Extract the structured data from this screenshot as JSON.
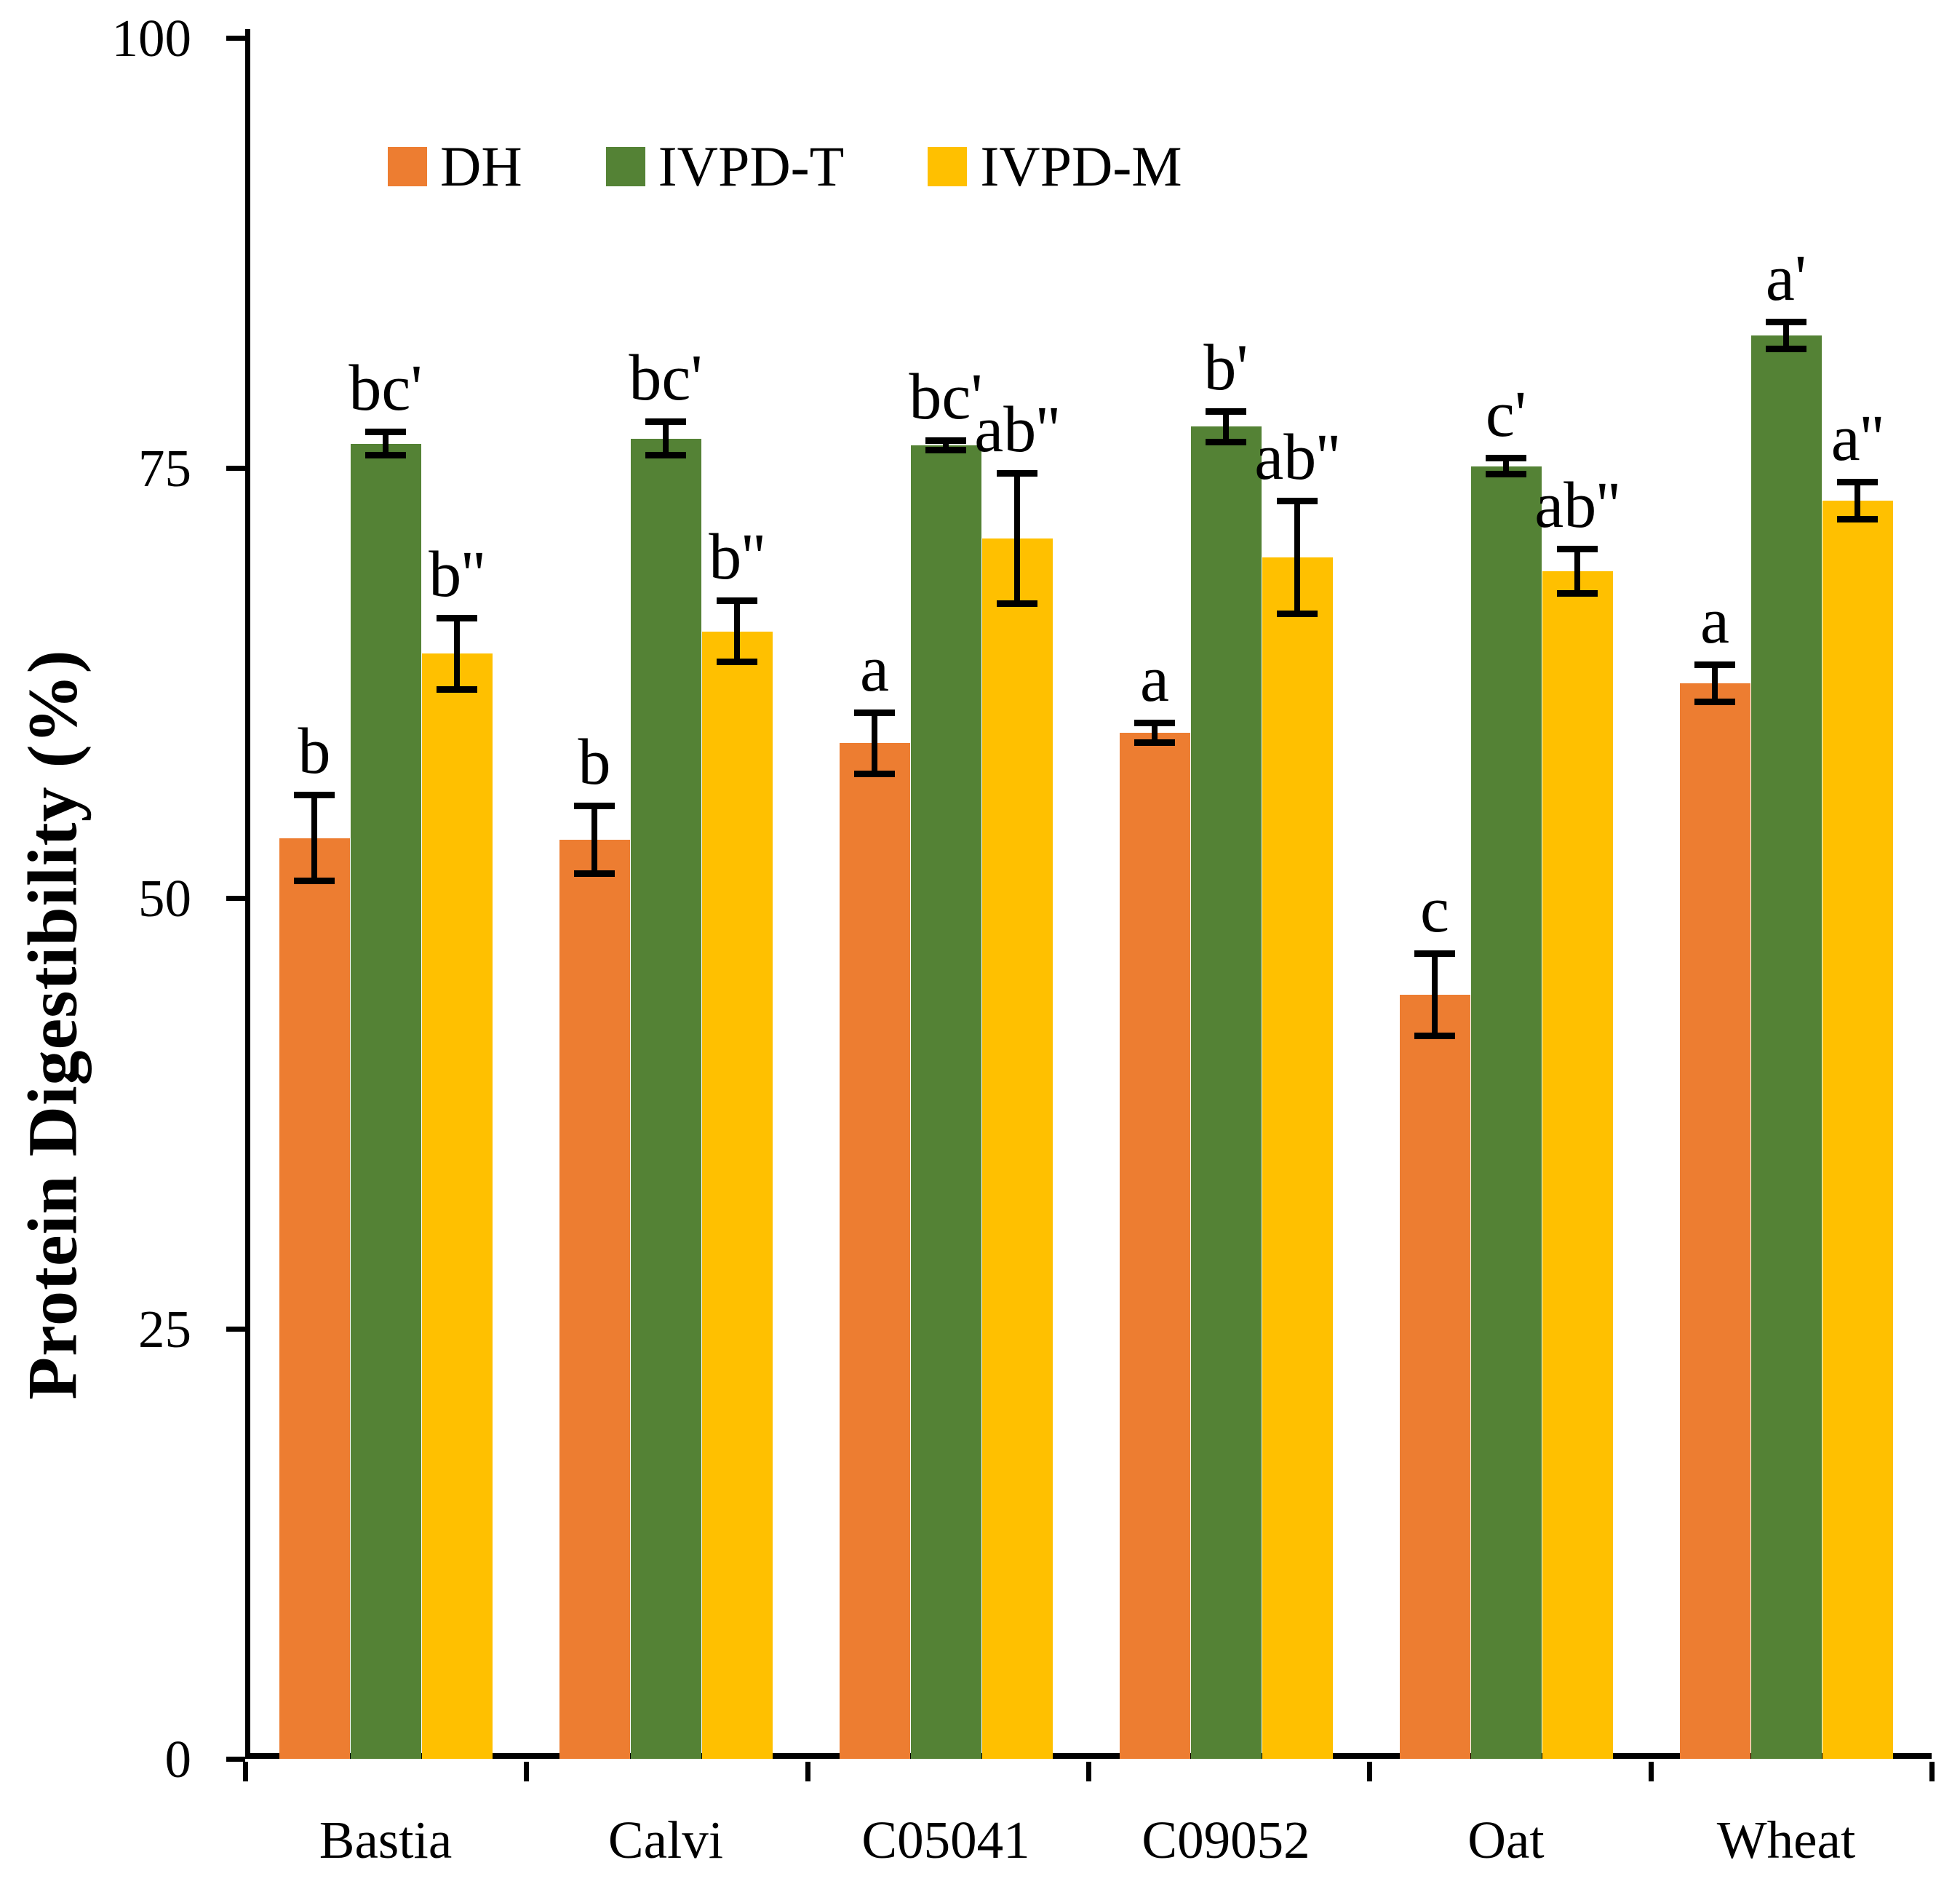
{
  "figure": {
    "background": "#FFFFFF"
  },
  "y_axis": {
    "title": "Protein Digestibility (%)"
  },
  "legend": {
    "items": [
      {
        "label": "DH",
        "color": "#ED7D31"
      },
      {
        "label": "IVPD-T",
        "color": "#548235"
      },
      {
        "label": "IVPD-M",
        "color": "#FFC000"
      }
    ]
  },
  "chart_data": {
    "type": "bar",
    "title": "",
    "xlabel": "",
    "ylabel": "Protein Digestibility (%)",
    "ylim": [
      0,
      100
    ],
    "yticks": [
      0,
      25,
      50,
      75,
      100
    ],
    "grid": false,
    "legend_position": "top-left inside plot",
    "error_bars": true,
    "categories": [
      "Bastia",
      "Calvi",
      "C05041",
      "C09052",
      "Oat",
      "Wheat"
    ],
    "series": [
      {
        "name": "DH",
        "color": "#ED7D31",
        "values": [
          53.5,
          53.4,
          59.0,
          59.6,
          44.4,
          62.5
        ],
        "errors": [
          2.5,
          2.0,
          1.8,
          0.6,
          2.4,
          1.1
        ],
        "sig_labels": [
          "b",
          "b",
          "a",
          "a",
          "c",
          "a"
        ]
      },
      {
        "name": "IVPD-T",
        "color": "#548235",
        "values": [
          76.4,
          76.7,
          76.3,
          77.4,
          75.1,
          82.7
        ],
        "errors": [
          0.7,
          1.0,
          0.3,
          0.9,
          0.5,
          0.8
        ],
        "sig_labels": [
          "bc'",
          "bc'",
          "bc'",
          "b'",
          "c'",
          "a'"
        ]
      },
      {
        "name": "IVPD-M",
        "color": "#FFC000",
        "values": [
          64.2,
          65.5,
          70.9,
          69.8,
          69.0,
          73.1
        ],
        "errors": [
          2.1,
          1.8,
          3.8,
          3.3,
          1.3,
          1.1
        ],
        "sig_labels": [
          "b''",
          "b''",
          "ab''",
          "ab''",
          "ab''",
          "a''"
        ]
      }
    ]
  }
}
